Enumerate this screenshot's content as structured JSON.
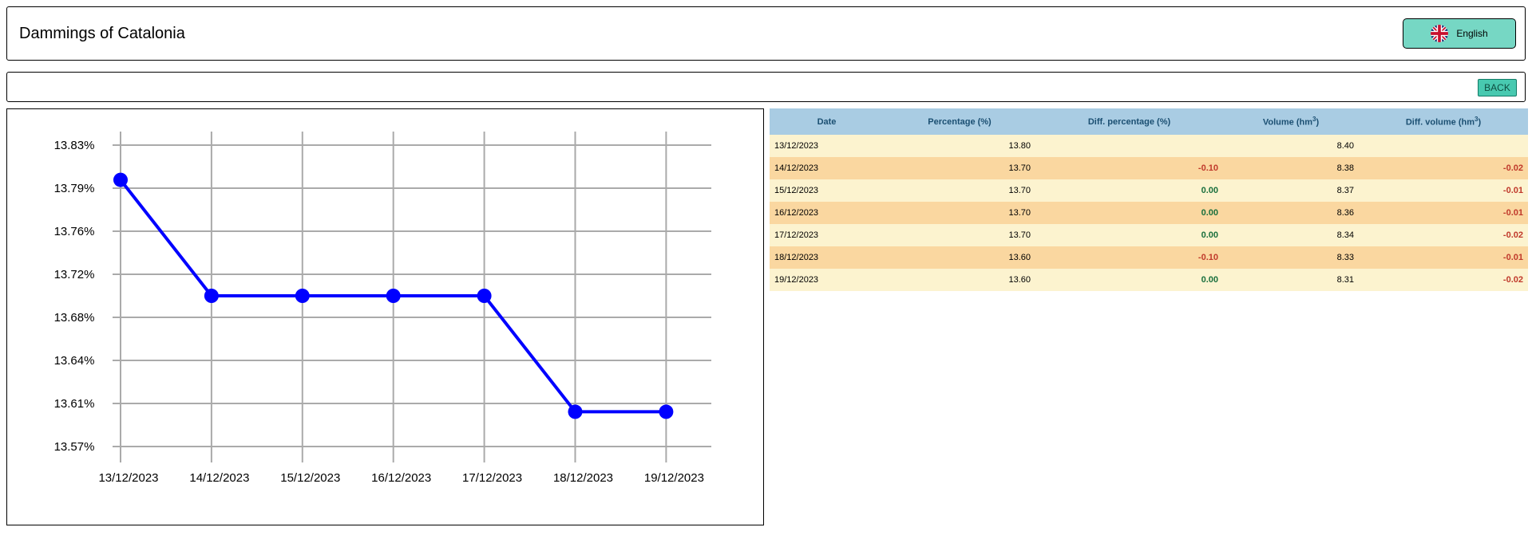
{
  "header": {
    "title": "Dammings of Catalonia",
    "language_label": "English",
    "language_icon": "uk-flag-icon"
  },
  "toolbar": {
    "back_label": "BACK"
  },
  "colors": {
    "line": "#0000ff",
    "button": "#76d7c4",
    "back_button": "#48c9b0",
    "table_header": "#a9cce3",
    "row_odd": "#fcf3cf",
    "row_even": "#fad7a0",
    "negative": "#c0392b",
    "positive": "#196f3d"
  },
  "chart_data": {
    "type": "line",
    "title": "",
    "xlabel": "",
    "ylabel": "",
    "categories": [
      "13/12/2023",
      "14/12/2023",
      "15/12/2023",
      "16/12/2023",
      "17/12/2023",
      "18/12/2023",
      "19/12/2023"
    ],
    "values": [
      13.8,
      13.7,
      13.7,
      13.7,
      13.7,
      13.6,
      13.6
    ],
    "yticks": [
      "13.57%",
      "13.61%",
      "13.64%",
      "13.68%",
      "13.72%",
      "13.76%",
      "13.79%",
      "13.83%"
    ],
    "ylim": [
      13.57,
      13.83
    ],
    "grid": true,
    "legend": "none"
  },
  "table": {
    "columns": {
      "date": "Date",
      "percentage": "Percentage (%)",
      "diff_percentage": "Diff. percentage (%)",
      "volume": "Volume (hm",
      "volume_sup": "3",
      "volume_close": ")",
      "diff_volume": "Diff. volume (hm",
      "diff_volume_sup": "3",
      "diff_volume_close": ")"
    },
    "rows": [
      {
        "date": "13/12/2023",
        "percentage": "13.80",
        "diff_percentage": "",
        "volume": "8.40",
        "diff_volume": ""
      },
      {
        "date": "14/12/2023",
        "percentage": "13.70",
        "diff_percentage": "-0.10",
        "volume": "8.38",
        "diff_volume": "-0.02"
      },
      {
        "date": "15/12/2023",
        "percentage": "13.70",
        "diff_percentage": "0.00",
        "volume": "8.37",
        "diff_volume": "-0.01"
      },
      {
        "date": "16/12/2023",
        "percentage": "13.70",
        "diff_percentage": "0.00",
        "volume": "8.36",
        "diff_volume": "-0.01"
      },
      {
        "date": "17/12/2023",
        "percentage": "13.70",
        "diff_percentage": "0.00",
        "volume": "8.34",
        "diff_volume": "-0.02"
      },
      {
        "date": "18/12/2023",
        "percentage": "13.60",
        "diff_percentage": "-0.10",
        "volume": "8.33",
        "diff_volume": "-0.01"
      },
      {
        "date": "19/12/2023",
        "percentage": "13.60",
        "diff_percentage": "0.00",
        "volume": "8.31",
        "diff_volume": "-0.02"
      }
    ]
  }
}
